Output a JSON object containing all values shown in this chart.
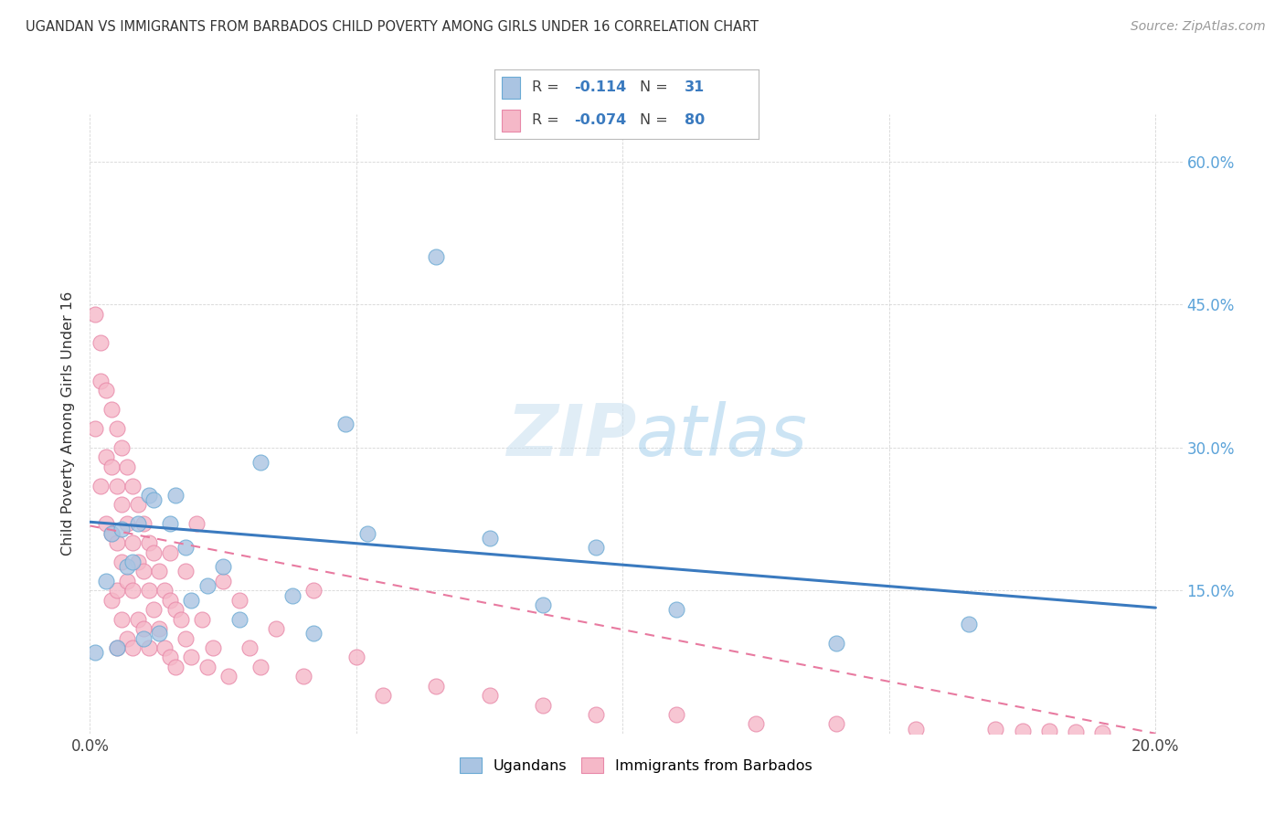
{
  "title": "UGANDAN VS IMMIGRANTS FROM BARBADOS CHILD POVERTY AMONG GIRLS UNDER 16 CORRELATION CHART",
  "source": "Source: ZipAtlas.com",
  "ylabel": "Child Poverty Among Girls Under 16",
  "watermark": "ZIPatlas",
  "xlim": [
    0.0,
    0.2
  ],
  "ylim": [
    0.0,
    0.65
  ],
  "ugandan_R": -0.114,
  "ugandan_N": 31,
  "barbados_R": -0.074,
  "barbados_N": 80,
  "ugandan_fill": "#aac4e2",
  "ugandan_edge": "#6aaad4",
  "barbados_fill": "#f5b8c8",
  "barbados_edge": "#e888a8",
  "ugandan_line": "#3a7abf",
  "barbados_line": "#e87aa0",
  "background": "#ffffff",
  "grid_color": "#cccccc",
  "ugandan_x": [
    0.001,
    0.003,
    0.004,
    0.005,
    0.006,
    0.007,
    0.008,
    0.009,
    0.01,
    0.011,
    0.012,
    0.013,
    0.015,
    0.016,
    0.018,
    0.019,
    0.022,
    0.025,
    0.028,
    0.032,
    0.038,
    0.042,
    0.048,
    0.052,
    0.065,
    0.075,
    0.085,
    0.095,
    0.11,
    0.14,
    0.165
  ],
  "ugandan_y": [
    0.085,
    0.16,
    0.21,
    0.09,
    0.215,
    0.175,
    0.18,
    0.22,
    0.1,
    0.25,
    0.245,
    0.105,
    0.22,
    0.25,
    0.195,
    0.14,
    0.155,
    0.175,
    0.12,
    0.285,
    0.145,
    0.105,
    0.325,
    0.21,
    0.5,
    0.205,
    0.135,
    0.195,
    0.13,
    0.095,
    0.115
  ],
  "barbados_x": [
    0.001,
    0.001,
    0.002,
    0.002,
    0.002,
    0.003,
    0.003,
    0.003,
    0.004,
    0.004,
    0.004,
    0.004,
    0.005,
    0.005,
    0.005,
    0.005,
    0.005,
    0.006,
    0.006,
    0.006,
    0.006,
    0.007,
    0.007,
    0.007,
    0.007,
    0.008,
    0.008,
    0.008,
    0.008,
    0.009,
    0.009,
    0.009,
    0.01,
    0.01,
    0.01,
    0.011,
    0.011,
    0.011,
    0.012,
    0.012,
    0.013,
    0.013,
    0.014,
    0.014,
    0.015,
    0.015,
    0.015,
    0.016,
    0.016,
    0.017,
    0.018,
    0.018,
    0.019,
    0.02,
    0.021,
    0.022,
    0.023,
    0.025,
    0.026,
    0.028,
    0.03,
    0.032,
    0.035,
    0.04,
    0.042,
    0.05,
    0.055,
    0.065,
    0.075,
    0.085,
    0.095,
    0.11,
    0.125,
    0.14,
    0.155,
    0.17,
    0.175,
    0.18,
    0.185,
    0.19
  ],
  "barbados_y": [
    0.44,
    0.32,
    0.41,
    0.37,
    0.26,
    0.36,
    0.29,
    0.22,
    0.34,
    0.28,
    0.21,
    0.14,
    0.32,
    0.26,
    0.2,
    0.15,
    0.09,
    0.3,
    0.24,
    0.18,
    0.12,
    0.28,
    0.22,
    0.16,
    0.1,
    0.26,
    0.2,
    0.15,
    0.09,
    0.24,
    0.18,
    0.12,
    0.22,
    0.17,
    0.11,
    0.2,
    0.15,
    0.09,
    0.19,
    0.13,
    0.17,
    0.11,
    0.15,
    0.09,
    0.14,
    0.19,
    0.08,
    0.13,
    0.07,
    0.12,
    0.17,
    0.1,
    0.08,
    0.22,
    0.12,
    0.07,
    0.09,
    0.16,
    0.06,
    0.14,
    0.09,
    0.07,
    0.11,
    0.06,
    0.15,
    0.08,
    0.04,
    0.05,
    0.04,
    0.03,
    0.02,
    0.02,
    0.01,
    0.01,
    0.005,
    0.005,
    0.003,
    0.003,
    0.002,
    0.001
  ]
}
